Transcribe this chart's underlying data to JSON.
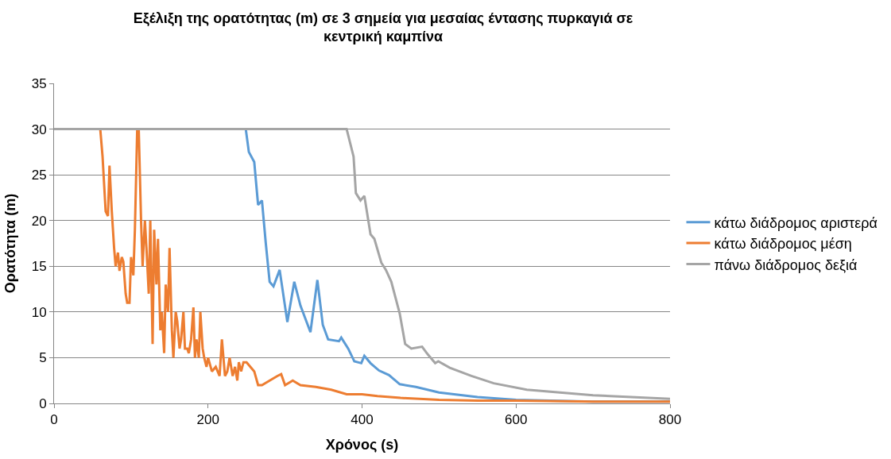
{
  "chart_data": {
    "type": "line",
    "title": "Εξέλιξη της ορατότητας (m) σε 3 σημεία για μεσαίας έντασης πυρκαγιά σε κεντρική καμπίνα",
    "xlabel": "Χρόνος (s)",
    "ylabel": "Ορατότητα (m)",
    "xlim": [
      0,
      800
    ],
    "xticks": [
      0,
      200,
      400,
      600,
      800
    ],
    "ylim": [
      0,
      35
    ],
    "yticks": [
      0,
      5,
      10,
      15,
      20,
      25,
      30,
      35
    ],
    "grid": "y",
    "legend": "right",
    "marker": "none",
    "line_style": "solid",
    "series": [
      {
        "name": "κάτω διάδρομος αριστερά",
        "color": "#5b9bd5",
        "x": [
          0,
          245,
          249,
          253,
          260,
          265,
          270,
          275,
          280,
          285,
          293,
          303,
          312,
          320,
          333,
          342,
          349,
          356,
          370,
          373,
          382,
          390,
          399,
          403,
          411,
          422,
          435,
          442,
          449,
          470,
          500,
          550,
          600,
          700,
          800
        ],
        "values": [
          30,
          30,
          30,
          27.5,
          26.4,
          21.7,
          22.2,
          17.5,
          13.3,
          12.8,
          14.6,
          8.9,
          13.3,
          10.7,
          7.8,
          13.5,
          8.6,
          7,
          6.8,
          7.2,
          6,
          4.6,
          4.4,
          5.2,
          4.4,
          3.6,
          3.1,
          2.6,
          2.1,
          1.8,
          1.2,
          0.7,
          0.4,
          0.2,
          0.2
        ]
      },
      {
        "name": "κάτω διάδρομος μέση",
        "color": "#ed7d31",
        "x": [
          0,
          60,
          63,
          67,
          70,
          72,
          75,
          78,
          80,
          83,
          85,
          88,
          90,
          93,
          95,
          98,
          100,
          103,
          105,
          108,
          110,
          113,
          115,
          118,
          120,
          123,
          125,
          128,
          130,
          133,
          135,
          138,
          140,
          143,
          145,
          148,
          150,
          153,
          155,
          158,
          160,
          163,
          165,
          168,
          170,
          173,
          175,
          178,
          181,
          183,
          185,
          188,
          190,
          193,
          195,
          198,
          200,
          205,
          210,
          215,
          218,
          222,
          225,
          228,
          232,
          235,
          238,
          240,
          243,
          246,
          250,
          255,
          260,
          265,
          270,
          280,
          290,
          295,
          300,
          310,
          320,
          340,
          360,
          380,
          400,
          420,
          450,
          500,
          550,
          600,
          700,
          800
        ],
        "values": [
          30,
          30,
          27,
          21,
          20.5,
          26,
          21,
          17,
          15,
          16.5,
          14.5,
          16,
          15.5,
          12,
          11,
          11,
          16,
          14,
          19,
          30,
          30,
          20,
          15,
          20,
          17,
          12,
          20,
          6.5,
          19,
          13,
          18,
          8,
          10,
          5.5,
          13,
          10,
          17,
          8,
          5,
          10,
          9,
          6,
          7,
          10,
          6,
          6,
          5.5,
          7,
          10.5,
          5,
          7,
          5,
          10,
          6,
          5,
          4,
          5,
          3.5,
          4,
          3,
          7,
          3,
          3.5,
          5,
          3,
          4,
          2.5,
          4.5,
          3.5,
          4.5,
          4.5,
          4,
          3.5,
          2,
          2,
          2.5,
          3,
          3.2,
          2,
          2.5,
          2,
          1.8,
          1.5,
          1,
          1,
          0.8,
          0.6,
          0.4,
          0.3,
          0.3,
          0.2,
          0.2
        ]
      },
      {
        "name": "πάνω διάδρομος δεξιά",
        "color": "#a5a5a5",
        "x": [
          0,
          380,
          389,
          392,
          398,
          403,
          411,
          416,
          425,
          431,
          438,
          449,
          456,
          464,
          478,
          485,
          495,
          499,
          514,
          542,
          571,
          614,
          700,
          800
        ],
        "values": [
          30,
          30,
          27,
          23,
          22.2,
          22.7,
          18.5,
          18,
          15.4,
          14.6,
          13.3,
          9.8,
          6.5,
          6,
          6.2,
          5.4,
          4.4,
          4.6,
          3.9,
          3,
          2.2,
          1.5,
          0.9,
          0.5
        ]
      }
    ]
  }
}
